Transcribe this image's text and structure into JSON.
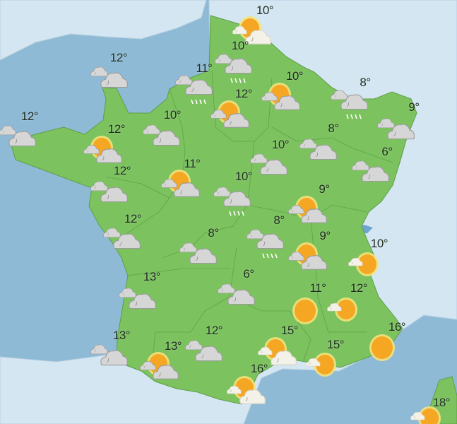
{
  "colors": {
    "sea": "#8fbad6",
    "neighbor_land": "#d3e6f2",
    "france_land": "#7cc35f",
    "sun": "#f5a623",
    "cloud": "#d4d4d4"
  },
  "stations": [
    {
      "temp": "10°",
      "condition": "sun-cloud-light-icon"
    },
    {
      "temp": "10°",
      "condition": "cloud-rain-icon"
    },
    {
      "temp": "12°",
      "condition": "cloudy-icon"
    },
    {
      "temp": "11°",
      "condition": "cloud-rain-icon"
    },
    {
      "temp": "10°",
      "condition": "sun-cloud-icon"
    },
    {
      "temp": "8°",
      "condition": "cloud-rain-icon"
    },
    {
      "temp": "12°",
      "condition": "sun-cloud-icon"
    },
    {
      "temp": "9°",
      "condition": "cloudy-icon"
    },
    {
      "temp": "12°",
      "condition": "cloudy-icon"
    },
    {
      "temp": "10°",
      "condition": "cloudy-icon"
    },
    {
      "temp": "12°",
      "condition": "sun-cloud-icon"
    },
    {
      "temp": "8°",
      "condition": "cloudy-icon"
    },
    {
      "temp": "10°",
      "condition": "cloudy-icon"
    },
    {
      "temp": "6°",
      "condition": "cloudy-icon"
    },
    {
      "temp": "11°",
      "condition": "sun-cloud-icon"
    },
    {
      "temp": "12°",
      "condition": "cloudy-icon"
    },
    {
      "temp": "10°",
      "condition": "cloud-rain-icon"
    },
    {
      "temp": "9°",
      "condition": "sun-cloud-icon"
    },
    {
      "temp": "12°",
      "condition": "cloudy-icon"
    },
    {
      "temp": "8°",
      "condition": "cloudy-icon"
    },
    {
      "temp": "8°",
      "condition": "cloud-rain-icon"
    },
    {
      "temp": "9°",
      "condition": "sun-cloud-icon"
    },
    {
      "temp": "10°",
      "condition": "sun-small-cloud-icon"
    },
    {
      "temp": "13°",
      "condition": "cloudy-icon"
    },
    {
      "temp": "6°",
      "condition": "cloudy-icon"
    },
    {
      "temp": "11°",
      "condition": "sun-icon"
    },
    {
      "temp": "12°",
      "condition": "sun-small-cloud-icon"
    },
    {
      "temp": "13°",
      "condition": "cloudy-icon"
    },
    {
      "temp": "12°",
      "condition": "cloudy-icon"
    },
    {
      "temp": "15°",
      "condition": "sun-cloud-light-icon"
    },
    {
      "temp": "13°",
      "condition": "sun-cloud-icon"
    },
    {
      "temp": "15°",
      "condition": "sun-small-cloud-icon"
    },
    {
      "temp": "16°",
      "condition": "sun-icon"
    },
    {
      "temp": "16°",
      "condition": "sun-cloud-light-icon"
    },
    {
      "temp": "18°",
      "condition": "sun-small-cloud-icon"
    }
  ]
}
